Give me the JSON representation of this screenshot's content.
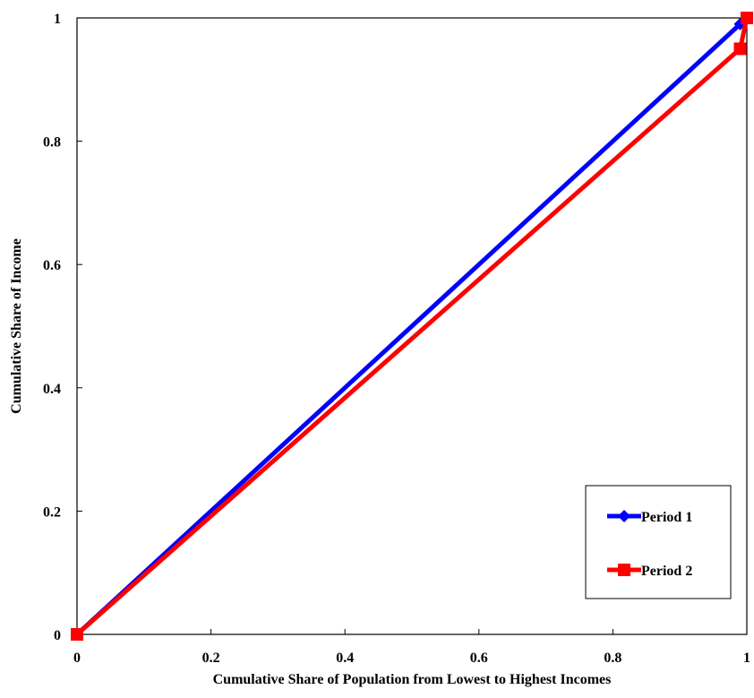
{
  "chart_data": {
    "type": "line",
    "title": "",
    "xlabel": "Cumulative Share of Population from Lowest to Highest Incomes",
    "ylabel": "Cumulative Share of Income",
    "xlim": [
      0,
      1
    ],
    "ylim": [
      0,
      1
    ],
    "x_ticks": [
      0,
      0.2,
      0.4,
      0.6,
      0.8,
      1
    ],
    "y_ticks": [
      0,
      0.2,
      0.4,
      0.6,
      0.8,
      1
    ],
    "x_tick_labels": [
      "0",
      "0.2",
      "0.4",
      "0.6",
      "0.8",
      "1"
    ],
    "y_tick_labels": [
      "0",
      "0.2",
      "0.4",
      "0.6",
      "0.8",
      "1"
    ],
    "grid": false,
    "legend_position": "bottom-right",
    "series": [
      {
        "name": "Period 1",
        "color": "#0000ff",
        "marker": "diamond",
        "x": [
          0,
          0.99,
          1
        ],
        "y": [
          0,
          0.99,
          1
        ]
      },
      {
        "name": "Period 2",
        "color": "#ff0000",
        "marker": "square",
        "x": [
          0,
          0.99,
          1
        ],
        "y": [
          0,
          0.95,
          1
        ]
      }
    ]
  }
}
